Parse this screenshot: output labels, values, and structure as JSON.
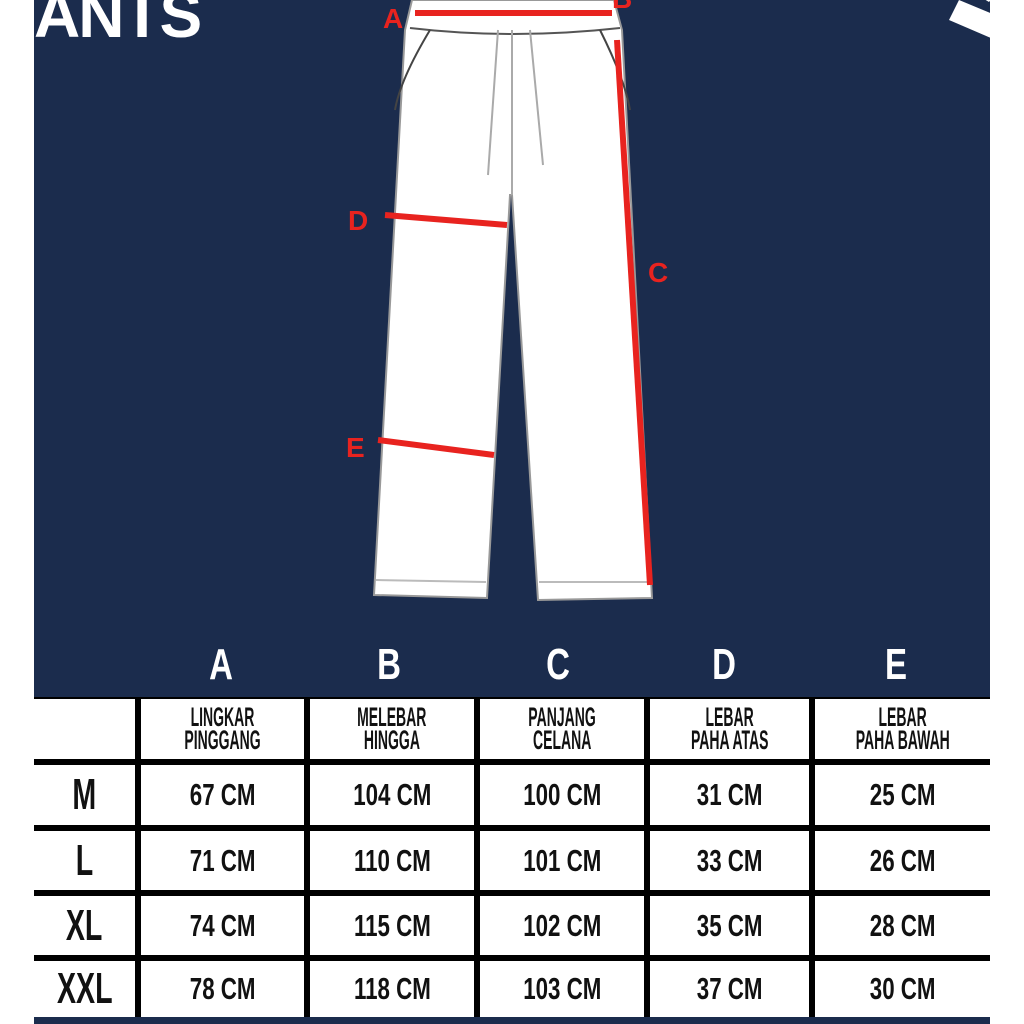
{
  "title": "ANTS",
  "diagram": {
    "labels": [
      "A",
      "B",
      "C",
      "D",
      "E"
    ],
    "accent": "#e8231f",
    "background": "#1b2c4d"
  },
  "table": {
    "columns": [
      {
        "letter": "A",
        "line1": "LINGKAR",
        "line2": "PINGGANG"
      },
      {
        "letter": "B",
        "line1": "MELEBAR",
        "line2": "HINGGA"
      },
      {
        "letter": "C",
        "line1": "PANJANG",
        "line2": "CELANA"
      },
      {
        "letter": "D",
        "line1": "LEBAR",
        "line2": "PAHA ATAS"
      },
      {
        "letter": "E",
        "line1": "LEBAR",
        "line2": "PAHA BAWAH"
      }
    ],
    "rows": [
      {
        "size": "M",
        "values": [
          "67 CM",
          "104 CM",
          "100 CM",
          "31 CM",
          "25 CM"
        ]
      },
      {
        "size": "L",
        "values": [
          "71 CM",
          "110 CM",
          "101 CM",
          "33 CM",
          "26 CM"
        ]
      },
      {
        "size": "XL",
        "values": [
          "74 CM",
          "115 CM",
          "102 CM",
          "35 CM",
          "28 CM"
        ]
      },
      {
        "size": "XXL",
        "values": [
          "78 CM",
          "118 CM",
          "103 CM",
          "37 CM",
          "30 CM"
        ]
      }
    ]
  }
}
